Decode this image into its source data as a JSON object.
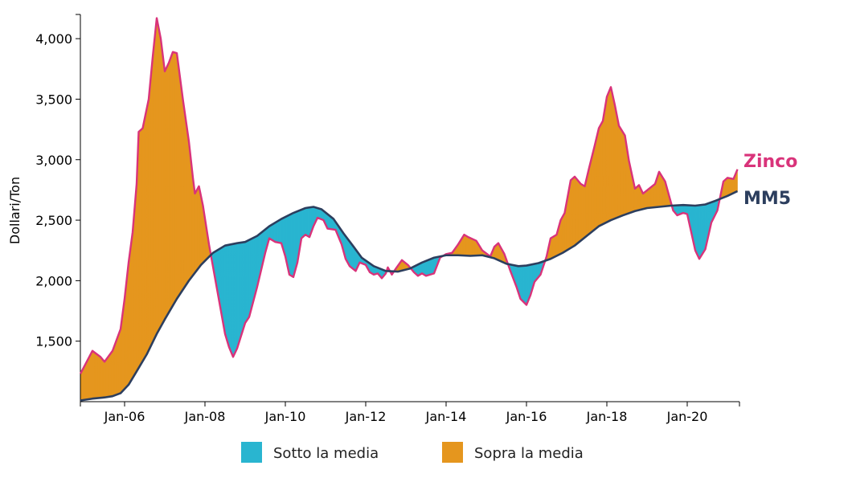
{
  "chart_data": {
    "type": "area",
    "title": "",
    "xlabel": "",
    "ylabel": "Dollari/Ton",
    "xlim": [
      2004.9,
      2021.3
    ],
    "ylim": [
      1000,
      4200
    ],
    "x_ticks": [
      {
        "x": 2006,
        "label": "Jan-06"
      },
      {
        "x": 2008,
        "label": "Jan-08"
      },
      {
        "x": 2010,
        "label": "Jan-10"
      },
      {
        "x": 2012,
        "label": "Jan-12"
      },
      {
        "x": 2014,
        "label": "Jan-14"
      },
      {
        "x": 2016,
        "label": "Jan-16"
      },
      {
        "x": 2018,
        "label": "Jan-18"
      },
      {
        "x": 2020,
        "label": "Jan-20"
      }
    ],
    "y_ticks": [
      {
        "value": 1500,
        "label": "1,500"
      },
      {
        "value": 2000,
        "label": "2,000"
      },
      {
        "value": 2500,
        "label": "2,500"
      },
      {
        "value": 3000,
        "label": "3,000"
      },
      {
        "value": 3500,
        "label": "3,500"
      },
      {
        "value": 4000,
        "label": "4,000"
      }
    ],
    "grid": false,
    "legend_position": "bottom",
    "series": [
      {
        "name": "Zinco",
        "color": "#d9337a",
        "points": [
          [
            2004.9,
            1230
          ],
          [
            2005.2,
            1420
          ],
          [
            2005.4,
            1370
          ],
          [
            2005.5,
            1330
          ],
          [
            2005.7,
            1420
          ],
          [
            2005.9,
            1600
          ],
          [
            2006.0,
            1850
          ],
          [
            2006.1,
            2150
          ],
          [
            2006.2,
            2400
          ],
          [
            2006.3,
            2800
          ],
          [
            2006.35,
            3230
          ],
          [
            2006.45,
            3260
          ],
          [
            2006.6,
            3500
          ],
          [
            2006.7,
            3850
          ],
          [
            2006.8,
            4170
          ],
          [
            2006.9,
            4000
          ],
          [
            2007.0,
            3730
          ],
          [
            2007.1,
            3800
          ],
          [
            2007.2,
            3890
          ],
          [
            2007.3,
            3880
          ],
          [
            2007.45,
            3500
          ],
          [
            2007.6,
            3150
          ],
          [
            2007.7,
            2850
          ],
          [
            2007.75,
            2720
          ],
          [
            2007.85,
            2780
          ],
          [
            2007.95,
            2620
          ],
          [
            2008.1,
            2300
          ],
          [
            2008.3,
            1930
          ],
          [
            2008.5,
            1560
          ],
          [
            2008.6,
            1450
          ],
          [
            2008.7,
            1370
          ],
          [
            2008.8,
            1440
          ],
          [
            2009.0,
            1650
          ],
          [
            2009.1,
            1700
          ],
          [
            2009.3,
            1950
          ],
          [
            2009.5,
            2230
          ],
          [
            2009.6,
            2350
          ],
          [
            2009.75,
            2320
          ],
          [
            2009.9,
            2310
          ],
          [
            2010.0,
            2200
          ],
          [
            2010.1,
            2050
          ],
          [
            2010.2,
            2030
          ],
          [
            2010.3,
            2150
          ],
          [
            2010.4,
            2350
          ],
          [
            2010.5,
            2380
          ],
          [
            2010.6,
            2360
          ],
          [
            2010.7,
            2450
          ],
          [
            2010.8,
            2520
          ],
          [
            2010.95,
            2500
          ],
          [
            2011.05,
            2430
          ],
          [
            2011.25,
            2420
          ],
          [
            2011.4,
            2300
          ],
          [
            2011.5,
            2180
          ],
          [
            2011.6,
            2120
          ],
          [
            2011.75,
            2080
          ],
          [
            2011.85,
            2150
          ],
          [
            2012.0,
            2130
          ],
          [
            2012.1,
            2070
          ],
          [
            2012.2,
            2050
          ],
          [
            2012.3,
            2060
          ],
          [
            2012.4,
            2020
          ],
          [
            2012.5,
            2060
          ],
          [
            2012.55,
            2110
          ],
          [
            2012.65,
            2050
          ],
          [
            2012.75,
            2100
          ],
          [
            2012.9,
            2170
          ],
          [
            2013.05,
            2130
          ],
          [
            2013.2,
            2070
          ],
          [
            2013.3,
            2040
          ],
          [
            2013.4,
            2060
          ],
          [
            2013.5,
            2040
          ],
          [
            2013.7,
            2060
          ],
          [
            2013.85,
            2190
          ],
          [
            2014.0,
            2220
          ],
          [
            2014.15,
            2230
          ],
          [
            2014.3,
            2300
          ],
          [
            2014.45,
            2380
          ],
          [
            2014.55,
            2360
          ],
          [
            2014.75,
            2330
          ],
          [
            2014.9,
            2250
          ],
          [
            2015.1,
            2200
          ],
          [
            2015.2,
            2280
          ],
          [
            2015.3,
            2310
          ],
          [
            2015.45,
            2220
          ],
          [
            2015.6,
            2080
          ],
          [
            2015.75,
            1950
          ],
          [
            2015.85,
            1850
          ],
          [
            2016.0,
            1800
          ],
          [
            2016.1,
            1880
          ],
          [
            2016.2,
            1990
          ],
          [
            2016.35,
            2050
          ],
          [
            2016.5,
            2200
          ],
          [
            2016.6,
            2350
          ],
          [
            2016.75,
            2380
          ],
          [
            2016.85,
            2500
          ],
          [
            2016.95,
            2560
          ],
          [
            2017.1,
            2830
          ],
          [
            2017.2,
            2860
          ],
          [
            2017.35,
            2800
          ],
          [
            2017.45,
            2780
          ],
          [
            2017.55,
            2920
          ],
          [
            2017.7,
            3120
          ],
          [
            2017.8,
            3260
          ],
          [
            2017.9,
            3320
          ],
          [
            2018.0,
            3520
          ],
          [
            2018.1,
            3600
          ],
          [
            2018.2,
            3450
          ],
          [
            2018.3,
            3280
          ],
          [
            2018.45,
            3200
          ],
          [
            2018.55,
            2990
          ],
          [
            2018.7,
            2760
          ],
          [
            2018.8,
            2790
          ],
          [
            2018.9,
            2720
          ],
          [
            2019.05,
            2760
          ],
          [
            2019.2,
            2800
          ],
          [
            2019.3,
            2900
          ],
          [
            2019.45,
            2820
          ],
          [
            2019.55,
            2700
          ],
          [
            2019.65,
            2580
          ],
          [
            2019.75,
            2540
          ],
          [
            2019.9,
            2560
          ],
          [
            2020.0,
            2550
          ],
          [
            2020.1,
            2400
          ],
          [
            2020.2,
            2250
          ],
          [
            2020.3,
            2180
          ],
          [
            2020.45,
            2260
          ],
          [
            2020.6,
            2480
          ],
          [
            2020.75,
            2580
          ],
          [
            2020.9,
            2820
          ],
          [
            2021.0,
            2850
          ],
          [
            2021.15,
            2840
          ],
          [
            2021.25,
            2920
          ]
        ]
      },
      {
        "name": "MM5",
        "color": "#2c3e5e",
        "points": [
          [
            2004.9,
            1010
          ],
          [
            2005.2,
            1025
          ],
          [
            2005.5,
            1035
          ],
          [
            2005.7,
            1045
          ],
          [
            2005.9,
            1070
          ],
          [
            2006.1,
            1140
          ],
          [
            2006.3,
            1250
          ],
          [
            2006.55,
            1390
          ],
          [
            2006.8,
            1560
          ],
          [
            2007.0,
            1680
          ],
          [
            2007.3,
            1850
          ],
          [
            2007.6,
            2000
          ],
          [
            2007.9,
            2130
          ],
          [
            2008.2,
            2230
          ],
          [
            2008.5,
            2290
          ],
          [
            2008.8,
            2310
          ],
          [
            2009.0,
            2320
          ],
          [
            2009.3,
            2370
          ],
          [
            2009.6,
            2450
          ],
          [
            2009.9,
            2510
          ],
          [
            2010.2,
            2560
          ],
          [
            2010.5,
            2600
          ],
          [
            2010.7,
            2610
          ],
          [
            2010.9,
            2590
          ],
          [
            2011.2,
            2510
          ],
          [
            2011.45,
            2390
          ],
          [
            2011.7,
            2280
          ],
          [
            2011.9,
            2190
          ],
          [
            2012.2,
            2120
          ],
          [
            2012.5,
            2080
          ],
          [
            2012.8,
            2075
          ],
          [
            2013.1,
            2100
          ],
          [
            2013.4,
            2150
          ],
          [
            2013.7,
            2190
          ],
          [
            2014.0,
            2210
          ],
          [
            2014.3,
            2210
          ],
          [
            2014.6,
            2205
          ],
          [
            2014.9,
            2210
          ],
          [
            2015.2,
            2185
          ],
          [
            2015.5,
            2140
          ],
          [
            2015.8,
            2120
          ],
          [
            2016.0,
            2125
          ],
          [
            2016.3,
            2145
          ],
          [
            2016.6,
            2180
          ],
          [
            2016.9,
            2230
          ],
          [
            2017.2,
            2290
          ],
          [
            2017.5,
            2370
          ],
          [
            2017.8,
            2450
          ],
          [
            2018.1,
            2500
          ],
          [
            2018.4,
            2540
          ],
          [
            2018.7,
            2575
          ],
          [
            2019.0,
            2600
          ],
          [
            2019.3,
            2610
          ],
          [
            2019.6,
            2620
          ],
          [
            2019.9,
            2625
          ],
          [
            2020.2,
            2620
          ],
          [
            2020.45,
            2630
          ],
          [
            2020.7,
            2660
          ],
          [
            2021.0,
            2700
          ],
          [
            2021.25,
            2740
          ]
        ]
      }
    ],
    "fills": [
      {
        "name": "Sotto la media",
        "color": "#29b5d0",
        "rule": "Zinco < MM5"
      },
      {
        "name": "Sopra la media",
        "color": "#e5961e",
        "rule": "Zinco > MM5"
      }
    ]
  }
}
